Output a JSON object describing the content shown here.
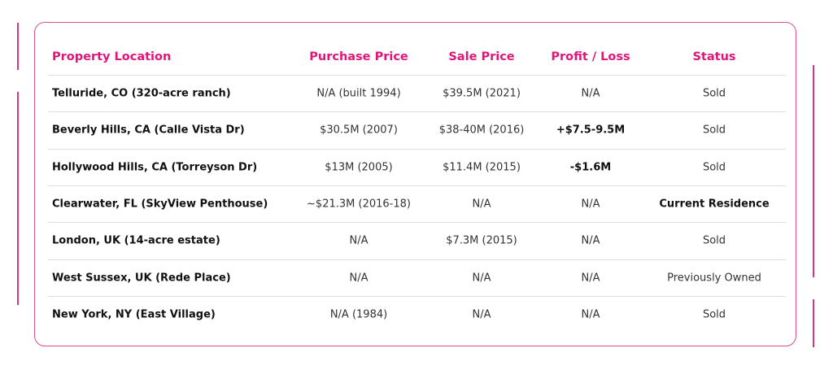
{
  "accent_color": "#e0157a",
  "table": {
    "headers": [
      "Property Location",
      "Purchase Price",
      "Sale Price",
      "Profit / Loss",
      "Status"
    ],
    "rows": [
      {
        "cells": [
          "Telluride, CO (320-acre ranch)",
          "N/A (built 1994)",
          "$39.5M (2021)",
          "N/A",
          "Sold"
        ],
        "bold": [
          0
        ]
      },
      {
        "cells": [
          "Beverly Hills, CA (Calle Vista Dr)",
          "$30.5M (2007)",
          "$38-40M (2016)",
          "+$7.5-9.5M",
          "Sold"
        ],
        "bold": [
          0,
          3
        ]
      },
      {
        "cells": [
          "Hollywood Hills, CA (Torreyson Dr)",
          "$13M (2005)",
          "$11.4M (2015)",
          "-$1.6M",
          "Sold"
        ],
        "bold": [
          0,
          3
        ]
      },
      {
        "cells": [
          "Clearwater, FL (SkyView Penthouse)",
          "~$21.3M (2016-18)",
          "N/A",
          "N/A",
          "Current Residence"
        ],
        "bold": [
          0,
          4
        ]
      },
      {
        "cells": [
          "London, UK (14-acre estate)",
          "N/A",
          "$7.3M (2015)",
          "N/A",
          "Sold"
        ],
        "bold": [
          0
        ]
      },
      {
        "cells": [
          "West Sussex, UK (Rede Place)",
          "N/A",
          "N/A",
          "N/A",
          "Previously Owned"
        ],
        "bold": [
          0
        ]
      },
      {
        "cells": [
          "New York, NY (East Village)",
          "N/A (1984)",
          "N/A",
          "N/A",
          "Sold"
        ],
        "bold": [
          0
        ]
      }
    ]
  }
}
